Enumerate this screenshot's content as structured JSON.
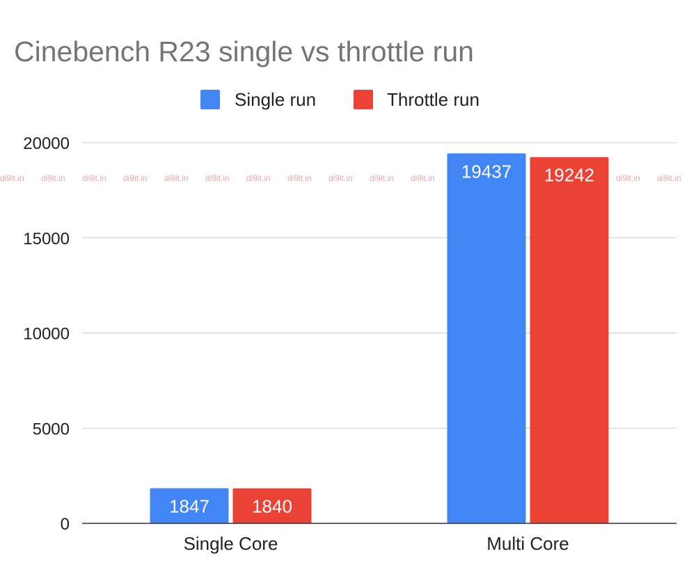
{
  "chart_data": {
    "type": "bar",
    "title": "Cinebench R23 single vs throttle run",
    "xlabel": "",
    "ylabel": "",
    "categories": [
      "Single Core",
      "Multi Core"
    ],
    "series": [
      {
        "name": "Single run",
        "values": [
          1847,
          19437
        ],
        "color": "#4285f4"
      },
      {
        "name": "Throttle run",
        "values": [
          1840,
          19242
        ],
        "color": "#ea4335"
      }
    ],
    "ylim": [
      0,
      20000
    ],
    "yticks": [
      0,
      5000,
      10000,
      15000,
      20000
    ],
    "grid": true,
    "legend_position": "top-center",
    "data_labels": true
  },
  "watermark": {
    "text": "di9it.in"
  }
}
